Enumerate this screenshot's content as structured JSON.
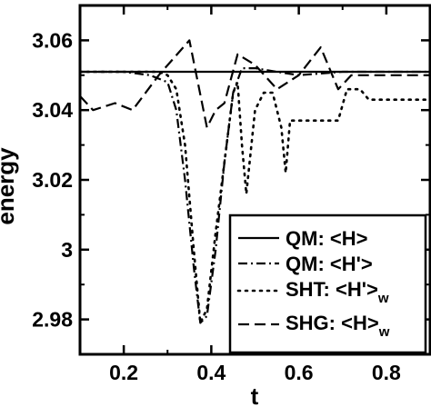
{
  "chart_data": {
    "type": "line",
    "title": "",
    "xlabel": "t",
    "ylabel": "energy",
    "xlim": [
      0.1,
      0.9
    ],
    "ylim": [
      2.97,
      3.07
    ],
    "x_ticks": [
      0.2,
      0.4,
      0.6,
      0.8
    ],
    "x_tick_labels": [
      "0.2",
      "0.4",
      "0.6",
      "0.8"
    ],
    "y_ticks": [
      2.98,
      3.0,
      3.02,
      3.04,
      3.06
    ],
    "y_tick_labels": [
      "2.98",
      "3",
      "3.02",
      "3.04",
      "3.06"
    ],
    "grid": false,
    "legend_position": "lower-right",
    "series": [
      {
        "name": "QM: <H>",
        "dash": "solid",
        "x": [
          0.1,
          0.9
        ],
        "y": [
          3.051,
          3.051
        ]
      },
      {
        "name": "QM: <H'>",
        "dash": "dashdot",
        "x": [
          0.1,
          0.2,
          0.26,
          0.3,
          0.32,
          0.34,
          0.36,
          0.375,
          0.39,
          0.41,
          0.43,
          0.45,
          0.47,
          0.5,
          0.55,
          0.6,
          0.7,
          0.8,
          0.9
        ],
        "y": [
          3.051,
          3.051,
          3.05,
          3.048,
          3.04,
          3.02,
          2.995,
          2.979,
          2.981,
          3.0,
          3.025,
          3.045,
          3.052,
          3.052,
          3.051,
          3.05,
          3.051,
          3.051,
          3.051
        ]
      },
      {
        "name": "SHT: <H'>",
        "sub": "w",
        "dash": "dotted",
        "x": [
          0.1,
          0.28,
          0.3,
          0.32,
          0.34,
          0.36,
          0.375,
          0.39,
          0.41,
          0.43,
          0.45,
          0.46,
          0.47,
          0.48,
          0.5,
          0.52,
          0.54,
          0.56,
          0.57,
          0.58,
          0.6,
          0.65,
          0.69,
          0.71,
          0.74,
          0.76,
          0.9
        ],
        "y": [
          3.051,
          3.051,
          3.05,
          3.046,
          3.03,
          3.0,
          2.979,
          2.983,
          3.005,
          3.025,
          3.045,
          3.048,
          3.03,
          3.016,
          3.04,
          3.045,
          3.045,
          3.035,
          3.022,
          3.037,
          3.037,
          3.037,
          3.037,
          3.046,
          3.046,
          3.043,
          3.043
        ]
      },
      {
        "name": "SHG: <H>",
        "sub": "w",
        "dash": "dashed",
        "x": [
          0.1,
          0.13,
          0.18,
          0.22,
          0.28,
          0.35,
          0.39,
          0.41,
          0.43,
          0.46,
          0.5,
          0.55,
          0.6,
          0.65,
          0.69,
          0.72,
          0.78,
          0.84,
          0.9
        ],
        "y": [
          3.044,
          3.04,
          3.042,
          3.04,
          3.05,
          3.06,
          3.035,
          3.04,
          3.042,
          3.056,
          3.053,
          3.046,
          3.05,
          3.058,
          3.046,
          3.05,
          3.05,
          3.05,
          3.05
        ]
      }
    ]
  }
}
